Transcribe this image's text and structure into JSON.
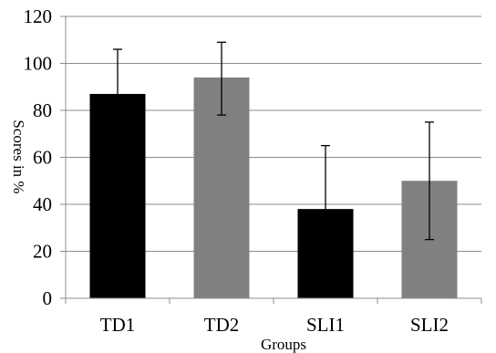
{
  "chart_data": {
    "type": "bar",
    "title": "",
    "xlabel": "Groups",
    "ylabel": "Scores in %",
    "categories": [
      "TD1",
      "TD2",
      "SLI1",
      "SLI2"
    ],
    "values": [
      87,
      94,
      38,
      50
    ],
    "error_low": [
      67,
      78,
      12,
      25
    ],
    "error_high": [
      106,
      109,
      65,
      75
    ],
    "bar_colors": [
      "#000000",
      "#808080",
      "#000000",
      "#808080"
    ],
    "ylim": [
      0,
      120
    ],
    "yticks": [
      0,
      20,
      40,
      60,
      80,
      100,
      120
    ],
    "grid": true,
    "legend": "none"
  }
}
